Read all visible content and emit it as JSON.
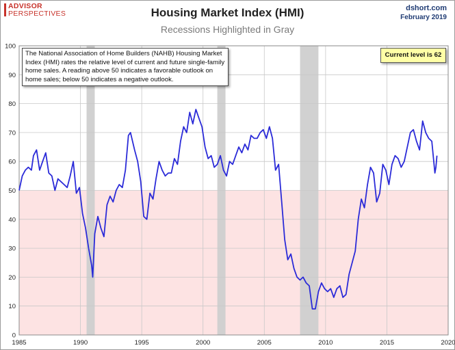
{
  "brand": {
    "line1": "ADVISOR",
    "line2": "PERSPECTIVES"
  },
  "header": {
    "site": "dshort.com",
    "date": "February 2019"
  },
  "chart_data": {
    "type": "line",
    "title": "Housing Market Index (HMI)",
    "subtitle": "Recessions Highlighted in Gray",
    "xlabel": "",
    "ylabel": "",
    "xlim": [
      1985,
      2020
    ],
    "ylim": [
      0,
      100
    ],
    "x_ticks": [
      "1985",
      "1990",
      "1995",
      "2000",
      "2005",
      "2010",
      "2015",
      "2020"
    ],
    "y_ticks": [
      "0",
      "10",
      "20",
      "30",
      "40",
      "50",
      "60",
      "70",
      "80",
      "90",
      "100"
    ],
    "grid": true,
    "threshold": {
      "value": 50,
      "below_color": "#fde3e3"
    },
    "recessions": [
      {
        "start": "1990-07",
        "end": "1991-03"
      },
      {
        "start": "2001-03",
        "end": "2001-11"
      },
      {
        "start": "2007-12",
        "end": "2009-06"
      }
    ],
    "recession_color": "#cfcfcf",
    "line_color": "#2a2ad8",
    "series": [
      {
        "name": "",
        "points": [
          [
            "1985-01",
            50
          ],
          [
            "1985-04",
            55
          ],
          [
            "1985-07",
            57
          ],
          [
            "1985-10",
            58
          ],
          [
            "1986-01",
            57
          ],
          [
            "1986-03",
            62
          ],
          [
            "1986-06",
            64
          ],
          [
            "1986-09",
            57
          ],
          [
            "1986-12",
            60
          ],
          [
            "1987-03",
            63
          ],
          [
            "1987-06",
            56
          ],
          [
            "1987-09",
            55
          ],
          [
            "1987-12",
            50
          ],
          [
            "1988-03",
            54
          ],
          [
            "1988-06",
            53
          ],
          [
            "1988-09",
            52
          ],
          [
            "1988-12",
            51
          ],
          [
            "1989-03",
            55
          ],
          [
            "1989-06",
            60
          ],
          [
            "1989-09",
            49
          ],
          [
            "1989-12",
            51
          ],
          [
            "1990-03",
            42
          ],
          [
            "1990-06",
            37
          ],
          [
            "1990-09",
            30
          ],
          [
            "1990-12",
            24
          ],
          [
            "1991-01",
            20
          ],
          [
            "1991-03",
            35
          ],
          [
            "1991-06",
            41
          ],
          [
            "1991-09",
            37
          ],
          [
            "1991-12",
            34
          ],
          [
            "1992-03",
            45
          ],
          [
            "1992-06",
            48
          ],
          [
            "1992-09",
            46
          ],
          [
            "1992-12",
            50
          ],
          [
            "1993-03",
            52
          ],
          [
            "1993-06",
            51
          ],
          [
            "1993-09",
            57
          ],
          [
            "1993-12",
            69
          ],
          [
            "1994-02",
            70
          ],
          [
            "1994-06",
            64
          ],
          [
            "1994-09",
            60
          ],
          [
            "1994-12",
            53
          ],
          [
            "1995-03",
            41
          ],
          [
            "1995-06",
            40
          ],
          [
            "1995-09",
            49
          ],
          [
            "1995-12",
            47
          ],
          [
            "1996-03",
            54
          ],
          [
            "1996-06",
            60
          ],
          [
            "1996-09",
            57
          ],
          [
            "1996-12",
            55
          ],
          [
            "1997-03",
            56
          ],
          [
            "1997-06",
            56
          ],
          [
            "1997-09",
            61
          ],
          [
            "1997-12",
            59
          ],
          [
            "1998-03",
            67
          ],
          [
            "1998-06",
            72
          ],
          [
            "1998-09",
            70
          ],
          [
            "1998-12",
            77
          ],
          [
            "1999-03",
            73
          ],
          [
            "1999-06",
            78
          ],
          [
            "1999-09",
            75
          ],
          [
            "1999-12",
            72
          ],
          [
            "2000-03",
            65
          ],
          [
            "2000-06",
            61
          ],
          [
            "2000-09",
            62
          ],
          [
            "2000-12",
            58
          ],
          [
            "2001-03",
            59
          ],
          [
            "2001-06",
            62
          ],
          [
            "2001-09",
            57
          ],
          [
            "2001-12",
            55
          ],
          [
            "2002-03",
            60
          ],
          [
            "2002-06",
            59
          ],
          [
            "2002-09",
            62
          ],
          [
            "2002-12",
            65
          ],
          [
            "2003-03",
            63
          ],
          [
            "2003-06",
            66
          ],
          [
            "2003-09",
            64
          ],
          [
            "2003-12",
            69
          ],
          [
            "2004-03",
            68
          ],
          [
            "2004-06",
            68
          ],
          [
            "2004-09",
            70
          ],
          [
            "2004-12",
            71
          ],
          [
            "2005-03",
            68
          ],
          [
            "2005-06",
            72
          ],
          [
            "2005-09",
            68
          ],
          [
            "2005-12",
            57
          ],
          [
            "2006-03",
            59
          ],
          [
            "2006-06",
            46
          ],
          [
            "2006-09",
            33
          ],
          [
            "2006-12",
            26
          ],
          [
            "2007-03",
            28
          ],
          [
            "2007-06",
            23
          ],
          [
            "2007-09",
            20
          ],
          [
            "2007-12",
            19
          ],
          [
            "2008-03",
            20
          ],
          [
            "2008-06",
            18
          ],
          [
            "2008-09",
            17
          ],
          [
            "2008-12",
            9
          ],
          [
            "2009-03",
            9
          ],
          [
            "2009-06",
            15
          ],
          [
            "2009-09",
            18
          ],
          [
            "2009-12",
            16
          ],
          [
            "2010-03",
            15
          ],
          [
            "2010-06",
            16
          ],
          [
            "2010-09",
            13
          ],
          [
            "2010-12",
            16
          ],
          [
            "2011-03",
            17
          ],
          [
            "2011-06",
            13
          ],
          [
            "2011-09",
            14
          ],
          [
            "2011-12",
            21
          ],
          [
            "2012-03",
            25
          ],
          [
            "2012-06",
            29
          ],
          [
            "2012-09",
            40
          ],
          [
            "2012-12",
            47
          ],
          [
            "2013-03",
            44
          ],
          [
            "2013-06",
            52
          ],
          [
            "2013-09",
            58
          ],
          [
            "2013-12",
            56
          ],
          [
            "2014-03",
            46
          ],
          [
            "2014-06",
            49
          ],
          [
            "2014-09",
            59
          ],
          [
            "2014-12",
            57
          ],
          [
            "2015-03",
            52
          ],
          [
            "2015-06",
            59
          ],
          [
            "2015-09",
            62
          ],
          [
            "2015-12",
            61
          ],
          [
            "2016-03",
            58
          ],
          [
            "2016-06",
            60
          ],
          [
            "2016-09",
            65
          ],
          [
            "2016-12",
            70
          ],
          [
            "2017-03",
            71
          ],
          [
            "2017-06",
            67
          ],
          [
            "2017-09",
            64
          ],
          [
            "2017-12",
            74
          ],
          [
            "2018-03",
            70
          ],
          [
            "2018-06",
            68
          ],
          [
            "2018-09",
            67
          ],
          [
            "2018-12",
            56
          ],
          [
            "2019-01",
            58
          ],
          [
            "2019-02",
            62
          ]
        ]
      }
    ]
  },
  "annotations": {
    "note": "The National Association of Home Builders (NAHB) Housing Market Index (HMI) rates the relative level of current and future single-family home sales. A reading above 50 indicates a favorable outlook on home sales; below 50 indicates a negative outlook.",
    "current_level": "Current level is 62"
  }
}
